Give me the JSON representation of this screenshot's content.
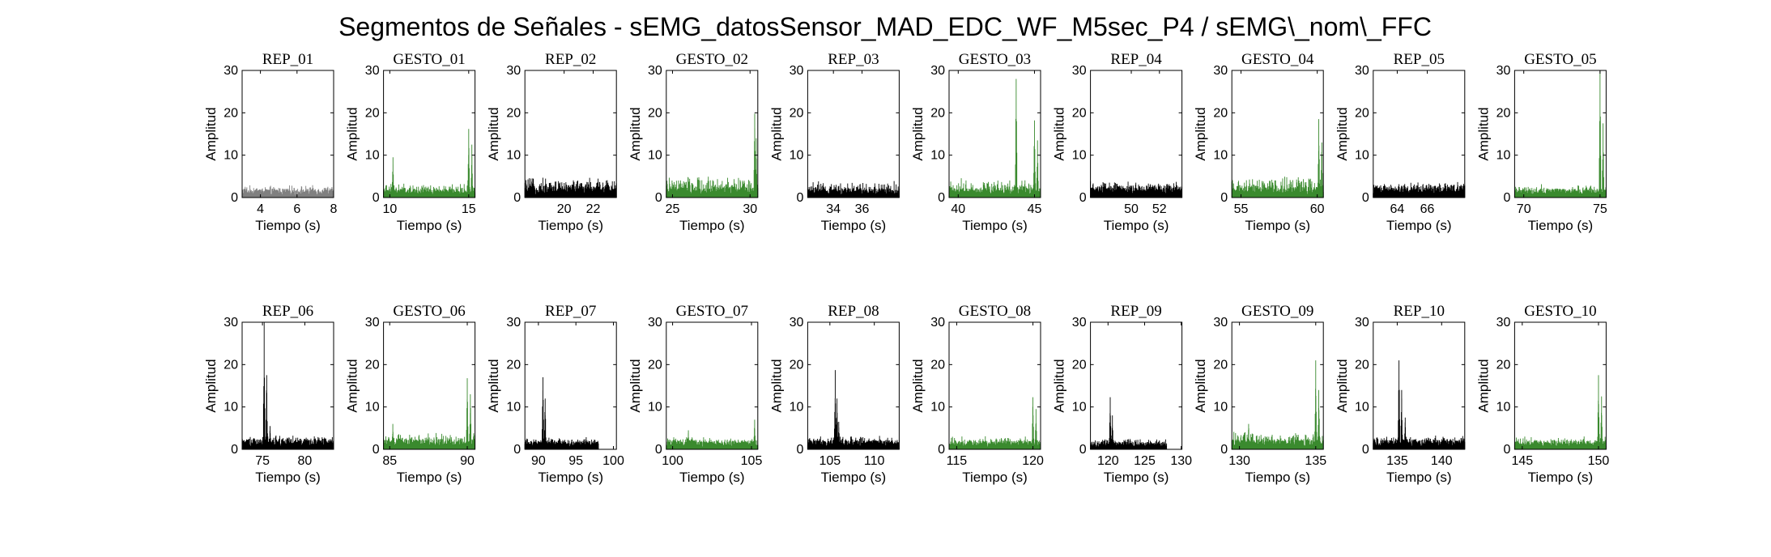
{
  "figure": {
    "title": "Segmentos de Señales - sEMG_datosSensor_MAD_EDC_WF_M5sec_P4 / sEMG\\_nom\\_FFC"
  },
  "colors": {
    "rep": "#000000",
    "rep_first": "#808080",
    "gesto": "#3a8a2e"
  },
  "chart_data": [
    {
      "type": "area",
      "title": "REP_01",
      "kind": "rep",
      "xlim": [
        3,
        8
      ],
      "ylim": [
        0,
        30
      ],
      "xticks": [
        4,
        6,
        8
      ],
      "yticks": [
        0,
        10,
        20,
        30
      ],
      "xlabel": "Tiempo (s)",
      "ylabel": "Amplitud",
      "data_end": 8,
      "baseline": 1.7,
      "noise": 0.8,
      "spikes": []
    },
    {
      "type": "area",
      "title": "GESTO_01",
      "kind": "gesto",
      "xlim": [
        9.6,
        15.4
      ],
      "ylim": [
        0,
        30
      ],
      "xticks": [
        10,
        15
      ],
      "yticks": [
        0,
        10,
        20,
        30
      ],
      "xlabel": "Tiempo (s)",
      "ylabel": "Amplitud",
      "data_end": 15.4,
      "baseline": 1.6,
      "noise": 1.4,
      "spikes": [
        [
          10.2,
          9.5
        ],
        [
          15.0,
          16.2
        ],
        [
          15.2,
          12.5
        ]
      ]
    },
    {
      "type": "area",
      "title": "REP_02",
      "kind": "rep",
      "xlim": [
        17.3,
        23.6
      ],
      "ylim": [
        0,
        30
      ],
      "xticks": [
        20,
        22
      ],
      "yticks": [
        0,
        10,
        20,
        30
      ],
      "xlabel": "Tiempo (s)",
      "ylabel": "Amplitud",
      "data_end": 23.6,
      "baseline": 2.2,
      "noise": 2.2,
      "spikes": []
    },
    {
      "type": "area",
      "title": "GESTO_02",
      "kind": "gesto",
      "xlim": [
        24.6,
        30.5
      ],
      "ylim": [
        0,
        30
      ],
      "xticks": [
        25,
        30
      ],
      "yticks": [
        0,
        10,
        20,
        30
      ],
      "xlabel": "Tiempo (s)",
      "ylabel": "Amplitud",
      "data_end": 30.5,
      "baseline": 2.0,
      "noise": 2.8,
      "spikes": [
        [
          30.3,
          19.8
        ],
        [
          30.4,
          14.0
        ]
      ]
    },
    {
      "type": "area",
      "title": "REP_03",
      "kind": "rep",
      "xlim": [
        32.2,
        38.6
      ],
      "ylim": [
        0,
        30
      ],
      "xticks": [
        34,
        36
      ],
      "yticks": [
        0,
        10,
        20,
        30
      ],
      "xlabel": "Tiempo (s)",
      "ylabel": "Amplitud",
      "data_end": 38.6,
      "baseline": 1.7,
      "noise": 2.0,
      "spikes": []
    },
    {
      "type": "area",
      "title": "GESTO_03",
      "kind": "gesto",
      "xlim": [
        39.4,
        45.4
      ],
      "ylim": [
        0,
        30
      ],
      "xticks": [
        40,
        45
      ],
      "yticks": [
        0,
        10,
        20,
        30
      ],
      "xlabel": "Tiempo (s)",
      "ylabel": "Amplitud",
      "data_end": 45.4,
      "baseline": 1.8,
      "noise": 2.4,
      "spikes": [
        [
          43.8,
          28.0
        ],
        [
          45.0,
          18.2
        ],
        [
          45.2,
          13.5
        ]
      ]
    },
    {
      "type": "area",
      "title": "REP_04",
      "kind": "rep",
      "xlim": [
        47.1,
        53.6
      ],
      "ylim": [
        0,
        30
      ],
      "xticks": [
        50,
        52
      ],
      "yticks": [
        0,
        10,
        20,
        30
      ],
      "xlabel": "Tiempo (s)",
      "ylabel": "Amplitud",
      "data_end": 53.6,
      "baseline": 2.2,
      "noise": 1.2,
      "spikes": []
    },
    {
      "type": "area",
      "title": "GESTO_04",
      "kind": "gesto",
      "xlim": [
        54.4,
        60.4
      ],
      "ylim": [
        0,
        30
      ],
      "xticks": [
        55,
        60
      ],
      "yticks": [
        0,
        10,
        20,
        30
      ],
      "xlabel": "Tiempo (s)",
      "ylabel": "Amplitud",
      "data_end": 60.4,
      "baseline": 1.8,
      "noise": 3.0,
      "spikes": [
        [
          60.1,
          18.5
        ],
        [
          60.3,
          13.0
        ]
      ]
    },
    {
      "type": "area",
      "title": "REP_05",
      "kind": "rep",
      "xlim": [
        62.4,
        68.5
      ],
      "ylim": [
        0,
        30
      ],
      "xticks": [
        64,
        66
      ],
      "yticks": [
        0,
        10,
        20,
        30
      ],
      "xlabel": "Tiempo (s)",
      "ylabel": "Amplitud",
      "data_end": 68.5,
      "baseline": 2.3,
      "noise": 1.0,
      "spikes": []
    },
    {
      "type": "area",
      "title": "GESTO_05",
      "kind": "gesto",
      "xlim": [
        69.4,
        75.4
      ],
      "ylim": [
        0,
        30
      ],
      "xticks": [
        70,
        75
      ],
      "yticks": [
        0,
        10,
        20,
        30
      ],
      "xlabel": "Tiempo (s)",
      "ylabel": "Amplitud",
      "data_end": 75.4,
      "baseline": 1.7,
      "noise": 1.2,
      "spikes": [
        [
          75.0,
          30.0
        ],
        [
          75.2,
          17.5
        ]
      ]
    },
    {
      "type": "area",
      "title": "REP_06",
      "kind": "rep",
      "xlim": [
        72.6,
        83.4
      ],
      "ylim": [
        0,
        30
      ],
      "xticks": [
        75,
        80
      ],
      "yticks": [
        0,
        10,
        20,
        30
      ],
      "xlabel": "Tiempo (s)",
      "ylabel": "Amplitud",
      "data_end": 83.4,
      "baseline": 2.0,
      "noise": 1.0,
      "spikes": [
        [
          75.2,
          30.0
        ],
        [
          75.5,
          17.5
        ],
        [
          75.9,
          5.5
        ]
      ]
    },
    {
      "type": "area",
      "title": "GESTO_06",
      "kind": "gesto",
      "xlim": [
        84.6,
        90.5
      ],
      "ylim": [
        0,
        30
      ],
      "xticks": [
        85,
        90
      ],
      "yticks": [
        0,
        10,
        20,
        30
      ],
      "xlabel": "Tiempo (s)",
      "ylabel": "Amplitud",
      "data_end": 90.5,
      "baseline": 1.8,
      "noise": 1.8,
      "spikes": [
        [
          85.2,
          6.0
        ],
        [
          90.0,
          16.8
        ],
        [
          90.2,
          13.0
        ]
      ]
    },
    {
      "type": "area",
      "title": "REP_07",
      "kind": "rep",
      "xlim": [
        88.2,
        100.4
      ],
      "ylim": [
        0,
        30
      ],
      "xticks": [
        90,
        95,
        100
      ],
      "yticks": [
        0,
        10,
        20,
        30
      ],
      "xlabel": "Tiempo (s)",
      "ylabel": "Amplitud",
      "data_end": 98.0,
      "baseline": 1.6,
      "noise": 1.0,
      "spikes": [
        [
          90.6,
          17.0
        ],
        [
          90.9,
          12.0
        ]
      ]
    },
    {
      "type": "area",
      "title": "GESTO_07",
      "kind": "gesto",
      "xlim": [
        99.6,
        105.4
      ],
      "ylim": [
        0,
        30
      ],
      "xticks": [
        100,
        105
      ],
      "yticks": [
        0,
        10,
        20,
        30
      ],
      "xlabel": "Tiempo (s)",
      "ylabel": "Amplitud",
      "data_end": 105.4,
      "baseline": 1.6,
      "noise": 1.2,
      "spikes": [
        [
          101.0,
          4.5
        ],
        [
          105.2,
          7.0
        ]
      ]
    },
    {
      "type": "area",
      "title": "REP_08",
      "kind": "rep",
      "xlim": [
        102.5,
        112.8
      ],
      "ylim": [
        0,
        30
      ],
      "xticks": [
        105,
        110
      ],
      "yticks": [
        0,
        10,
        20,
        30
      ],
      "xlabel": "Tiempo (s)",
      "ylabel": "Amplitud",
      "data_end": 112.8,
      "baseline": 1.8,
      "noise": 1.0,
      "spikes": [
        [
          105.6,
          18.7
        ],
        [
          105.8,
          12.0
        ],
        [
          106.0,
          6.5
        ]
      ]
    },
    {
      "type": "area",
      "title": "GESTO_08",
      "kind": "gesto",
      "xlim": [
        114.5,
        120.5
      ],
      "ylim": [
        0,
        30
      ],
      "xticks": [
        115,
        120
      ],
      "yticks": [
        0,
        10,
        20,
        30
      ],
      "xlabel": "Tiempo (s)",
      "ylabel": "Amplitud",
      "data_end": 120.5,
      "baseline": 1.6,
      "noise": 1.2,
      "spikes": [
        [
          120.0,
          12.3
        ],
        [
          120.2,
          9.5
        ]
      ]
    },
    {
      "type": "area",
      "title": "REP_09",
      "kind": "rep",
      "xlim": [
        117.6,
        130.1
      ],
      "ylim": [
        0,
        30
      ],
      "xticks": [
        120,
        125,
        130
      ],
      "yticks": [
        0,
        10,
        20,
        30
      ],
      "xlabel": "Tiempo (s)",
      "ylabel": "Amplitud",
      "data_end": 128.0,
      "baseline": 1.4,
      "noise": 0.8,
      "spikes": [
        [
          120.3,
          12.3
        ],
        [
          120.6,
          8.0
        ]
      ]
    },
    {
      "type": "area",
      "title": "GESTO_09",
      "kind": "gesto",
      "xlim": [
        129.5,
        135.5
      ],
      "ylim": [
        0,
        30
      ],
      "xticks": [
        130,
        135
      ],
      "yticks": [
        0,
        10,
        20,
        30
      ],
      "xlabel": "Tiempo (s)",
      "ylabel": "Amplitud",
      "data_end": 135.5,
      "baseline": 1.8,
      "noise": 2.2,
      "spikes": [
        [
          130.6,
          6.0
        ],
        [
          135.0,
          21.0
        ],
        [
          135.2,
          14.0
        ]
      ]
    },
    {
      "type": "area",
      "title": "REP_10",
      "kind": "rep",
      "xlim": [
        132.3,
        142.6
      ],
      "ylim": [
        0,
        30
      ],
      "xticks": [
        135,
        140
      ],
      "yticks": [
        0,
        10,
        20,
        30
      ],
      "xlabel": "Tiempo (s)",
      "ylabel": "Amplitud",
      "data_end": 142.6,
      "baseline": 1.8,
      "noise": 1.2,
      "spikes": [
        [
          135.2,
          21.0
        ],
        [
          135.5,
          14.0
        ],
        [
          135.9,
          7.5
        ]
      ]
    },
    {
      "type": "area",
      "title": "GESTO_10",
      "kind": "gesto",
      "xlim": [
        144.5,
        150.5
      ],
      "ylim": [
        0,
        30
      ],
      "xticks": [
        145,
        150
      ],
      "yticks": [
        0,
        10,
        20,
        30
      ],
      "xlabel": "Tiempo (s)",
      "ylabel": "Amplitud",
      "data_end": 150.5,
      "baseline": 1.6,
      "noise": 1.2,
      "spikes": [
        [
          150.0,
          17.5
        ],
        [
          150.2,
          12.5
        ]
      ]
    }
  ]
}
